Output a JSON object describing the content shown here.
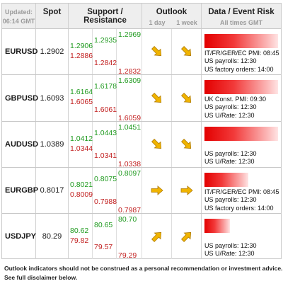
{
  "header": {
    "updated_label": "Updated:",
    "updated_time": "06:14 GMT",
    "spot": "Spot",
    "support_resistance": "Support / Resistance",
    "outlook": "Outlook",
    "outlook_1day": "1 day",
    "outlook_1week": "1 week",
    "data_event_risk": "Data / Event Risk",
    "all_times": "All times GMT"
  },
  "colors": {
    "resistance": "#1f9a1f",
    "support": "#c11f1f",
    "arrow": "#f0b400",
    "risk_bar": "#e30000"
  },
  "rows": [
    {
      "pair": "EURUSD",
      "spot": "1.2902",
      "levels": {
        "r1": "1.2906",
        "r2": "1.2935",
        "r3": "1.2969",
        "s1": "1.2886",
        "s2": "1.2842",
        "s3": "1.2832"
      },
      "outlook_1day": "arrow-down-right-icon",
      "outlook_1week": "arrow-down-right-icon",
      "risk_level": 1.0,
      "events": [
        "IT/FR/GER/EC PMI: 08:45",
        "US payrolls: 12:30",
        "US factory orders: 14:00"
      ]
    },
    {
      "pair": "GBPUSD",
      "spot": "1.6093",
      "levels": {
        "r1": "1.6164",
        "r2": "1.6178",
        "r3": "1.6309",
        "s1": "1.6065",
        "s2": "1.6061",
        "s3": "1.6059"
      },
      "outlook_1day": "arrow-down-right-icon",
      "outlook_1week": "arrow-down-right-icon",
      "risk_level": 1.0,
      "events": [
        "UK Const. PMI: 09:30",
        "US payrolls: 12:30",
        "US U/Rate: 12:30"
      ]
    },
    {
      "pair": "AUDUSD",
      "spot": "1.0389",
      "levels": {
        "r1": "1.0412",
        "r2": "1.0443",
        "r3": "1.0451",
        "s1": "1.0344",
        "s2": "1.0341",
        "s3": "1.0338"
      },
      "outlook_1day": "arrow-down-right-icon",
      "outlook_1week": "arrow-down-right-icon",
      "risk_level": 1.0,
      "events": [
        "US payrolls: 12:30",
        "US U/Rate: 12:30"
      ]
    },
    {
      "pair": "EURGBP",
      "spot": "0.8017",
      "levels": {
        "r1": "0.8021",
        "r2": "0.8075",
        "r3": "0.8097",
        "s1": "0.8009",
        "s2": "0.7988",
        "s3": "0.7987"
      },
      "outlook_1day": "arrow-right-icon",
      "outlook_1week": "arrow-right-icon",
      "risk_level": 0.6,
      "events": [
        "IT/FR/GER/EC PMI: 08:45",
        "US payrolls: 12:30",
        "US factory orders: 14:00"
      ]
    },
    {
      "pair": "USDJPY",
      "spot": "80.29",
      "levels": {
        "r1": "80.62",
        "r2": "80.65",
        "r3": "80.70",
        "s1": "79.82",
        "s2": "79.57",
        "s3": "79.29"
      },
      "outlook_1day": "arrow-up-right-icon",
      "outlook_1week": "arrow-up-right-icon",
      "risk_level": 0.35,
      "events": [
        "US payrolls: 12:30",
        "US U/Rate: 12:30"
      ]
    }
  ],
  "footer": {
    "line1": "Outlook indicators should not be construed as a personal recommendation or investment advice.",
    "line2": "See full disclaimer below."
  }
}
